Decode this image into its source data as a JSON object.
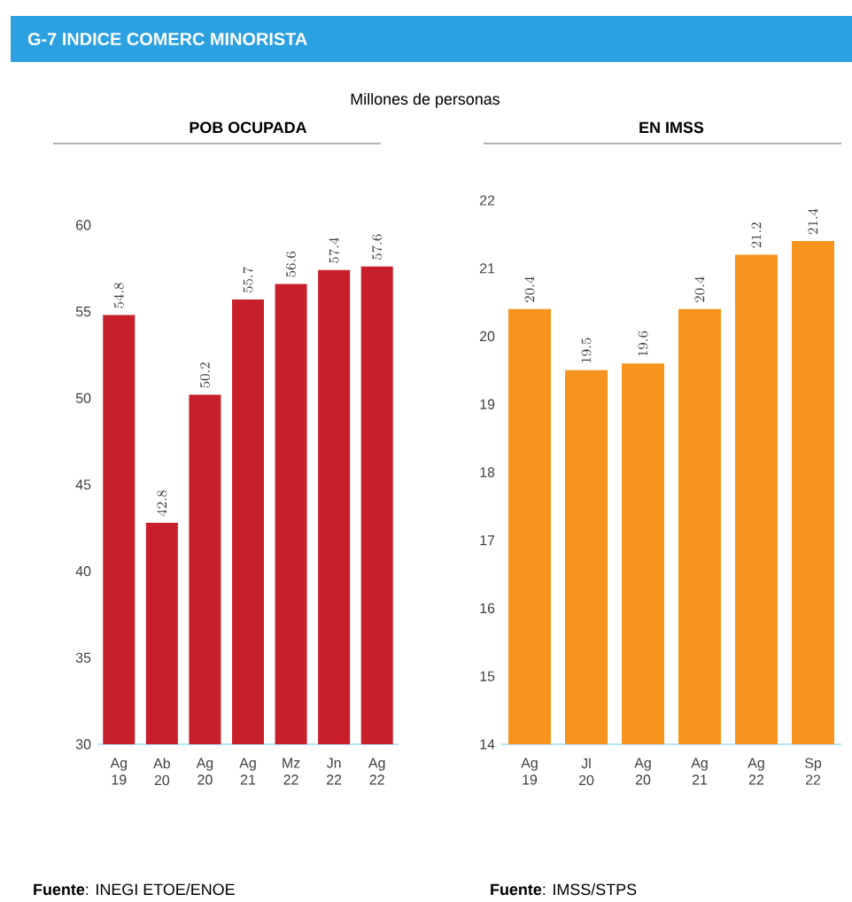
{
  "chart_data": [
    {
      "type": "bar",
      "title": "POB OCUPADA",
      "categories": [
        "Ag 19",
        "Ab 20",
        "Ag 20",
        "Ag 21",
        "Mz 22",
        "Jn 22",
        "Ag 22"
      ],
      "values": [
        54.8,
        42.8,
        50.2,
        55.7,
        56.6,
        57.4,
        57.6
      ],
      "color": "#c8202a",
      "ylim": [
        30,
        60
      ],
      "yticks": [
        30,
        35,
        40,
        45,
        50,
        55,
        60
      ],
      "data_labels": true,
      "annotations": [
        "G-7 INDICE COMERC MINORISTA",
        "Millones de personas",
        "**Fuente**: INEGI ETOE/ENOE"
      ]
    },
    {
      "type": "bar",
      "title": "EN IMSS",
      "categories": [
        "Ag 19",
        "Jl 20",
        "Ag 20",
        "Ag 21",
        "Ag 22",
        "Sp 22"
      ],
      "values": [
        20.4,
        19.5,
        19.6,
        20.4,
        21.2,
        21.4
      ],
      "color": "#f7941d",
      "ylim": [
        14,
        22
      ],
      "yticks": [
        14,
        15,
        16,
        17,
        18,
        19,
        20,
        21,
        22
      ],
      "data_labels": true,
      "annotations": [
        "**Fuente**: IMSS/STPS"
      ]
    }
  ]
}
